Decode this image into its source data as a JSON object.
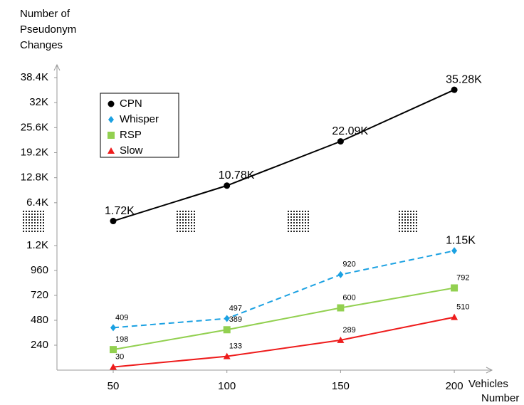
{
  "chart_data": {
    "type": "line",
    "y_label": [
      "Number of",
      "Pseudonym",
      "Changes"
    ],
    "x_label": [
      "Vehicles",
      "Number"
    ],
    "categories": [
      "50",
      "100",
      "150",
      "200"
    ],
    "ylim": [
      0,
      1200
    ],
    "yticks": [
      240,
      480,
      720,
      960,
      {
        "value": 1200,
        "label": "1.2K"
      }
    ],
    "ylim_upper": [
      0,
      38400
    ],
    "yticks_upper": [
      {
        "value": 6400,
        "label": "6.4K"
      },
      {
        "value": 12800,
        "label": "12.8K"
      },
      {
        "value": 19200,
        "label": "19.2K"
      },
      {
        "value": 25600,
        "label": "25.6K"
      },
      {
        "value": 32000,
        "label": "32K"
      },
      {
        "value": 38400,
        "label": "38.4K"
      }
    ],
    "legend": "upper left",
    "series": [
      {
        "name": "CPN",
        "color": "#000000",
        "marker": "circle",
        "dash": "solid",
        "axis": "upper",
        "values": [
          1720,
          10780,
          22090,
          35280
        ],
        "value_labels": [
          "1.72K",
          "10.78K",
          "22.09K",
          "35.28K"
        ]
      },
      {
        "name": "Whisper",
        "color": "#1ba1e2",
        "marker": "diamond",
        "dash": "dashed",
        "values": [
          409,
          497,
          920,
          1150
        ],
        "value_labels": [
          "409",
          "497",
          "920",
          "1.15K"
        ]
      },
      {
        "name": "RSP",
        "color": "#92d050",
        "marker": "square",
        "dash": "solid",
        "values": [
          198,
          389,
          600,
          792
        ]
      },
      {
        "name": "Slow",
        "color": "#ee1c1c",
        "marker": "triangle",
        "dash": "solid",
        "values": [
          30,
          133,
          289,
          510
        ]
      }
    ]
  }
}
